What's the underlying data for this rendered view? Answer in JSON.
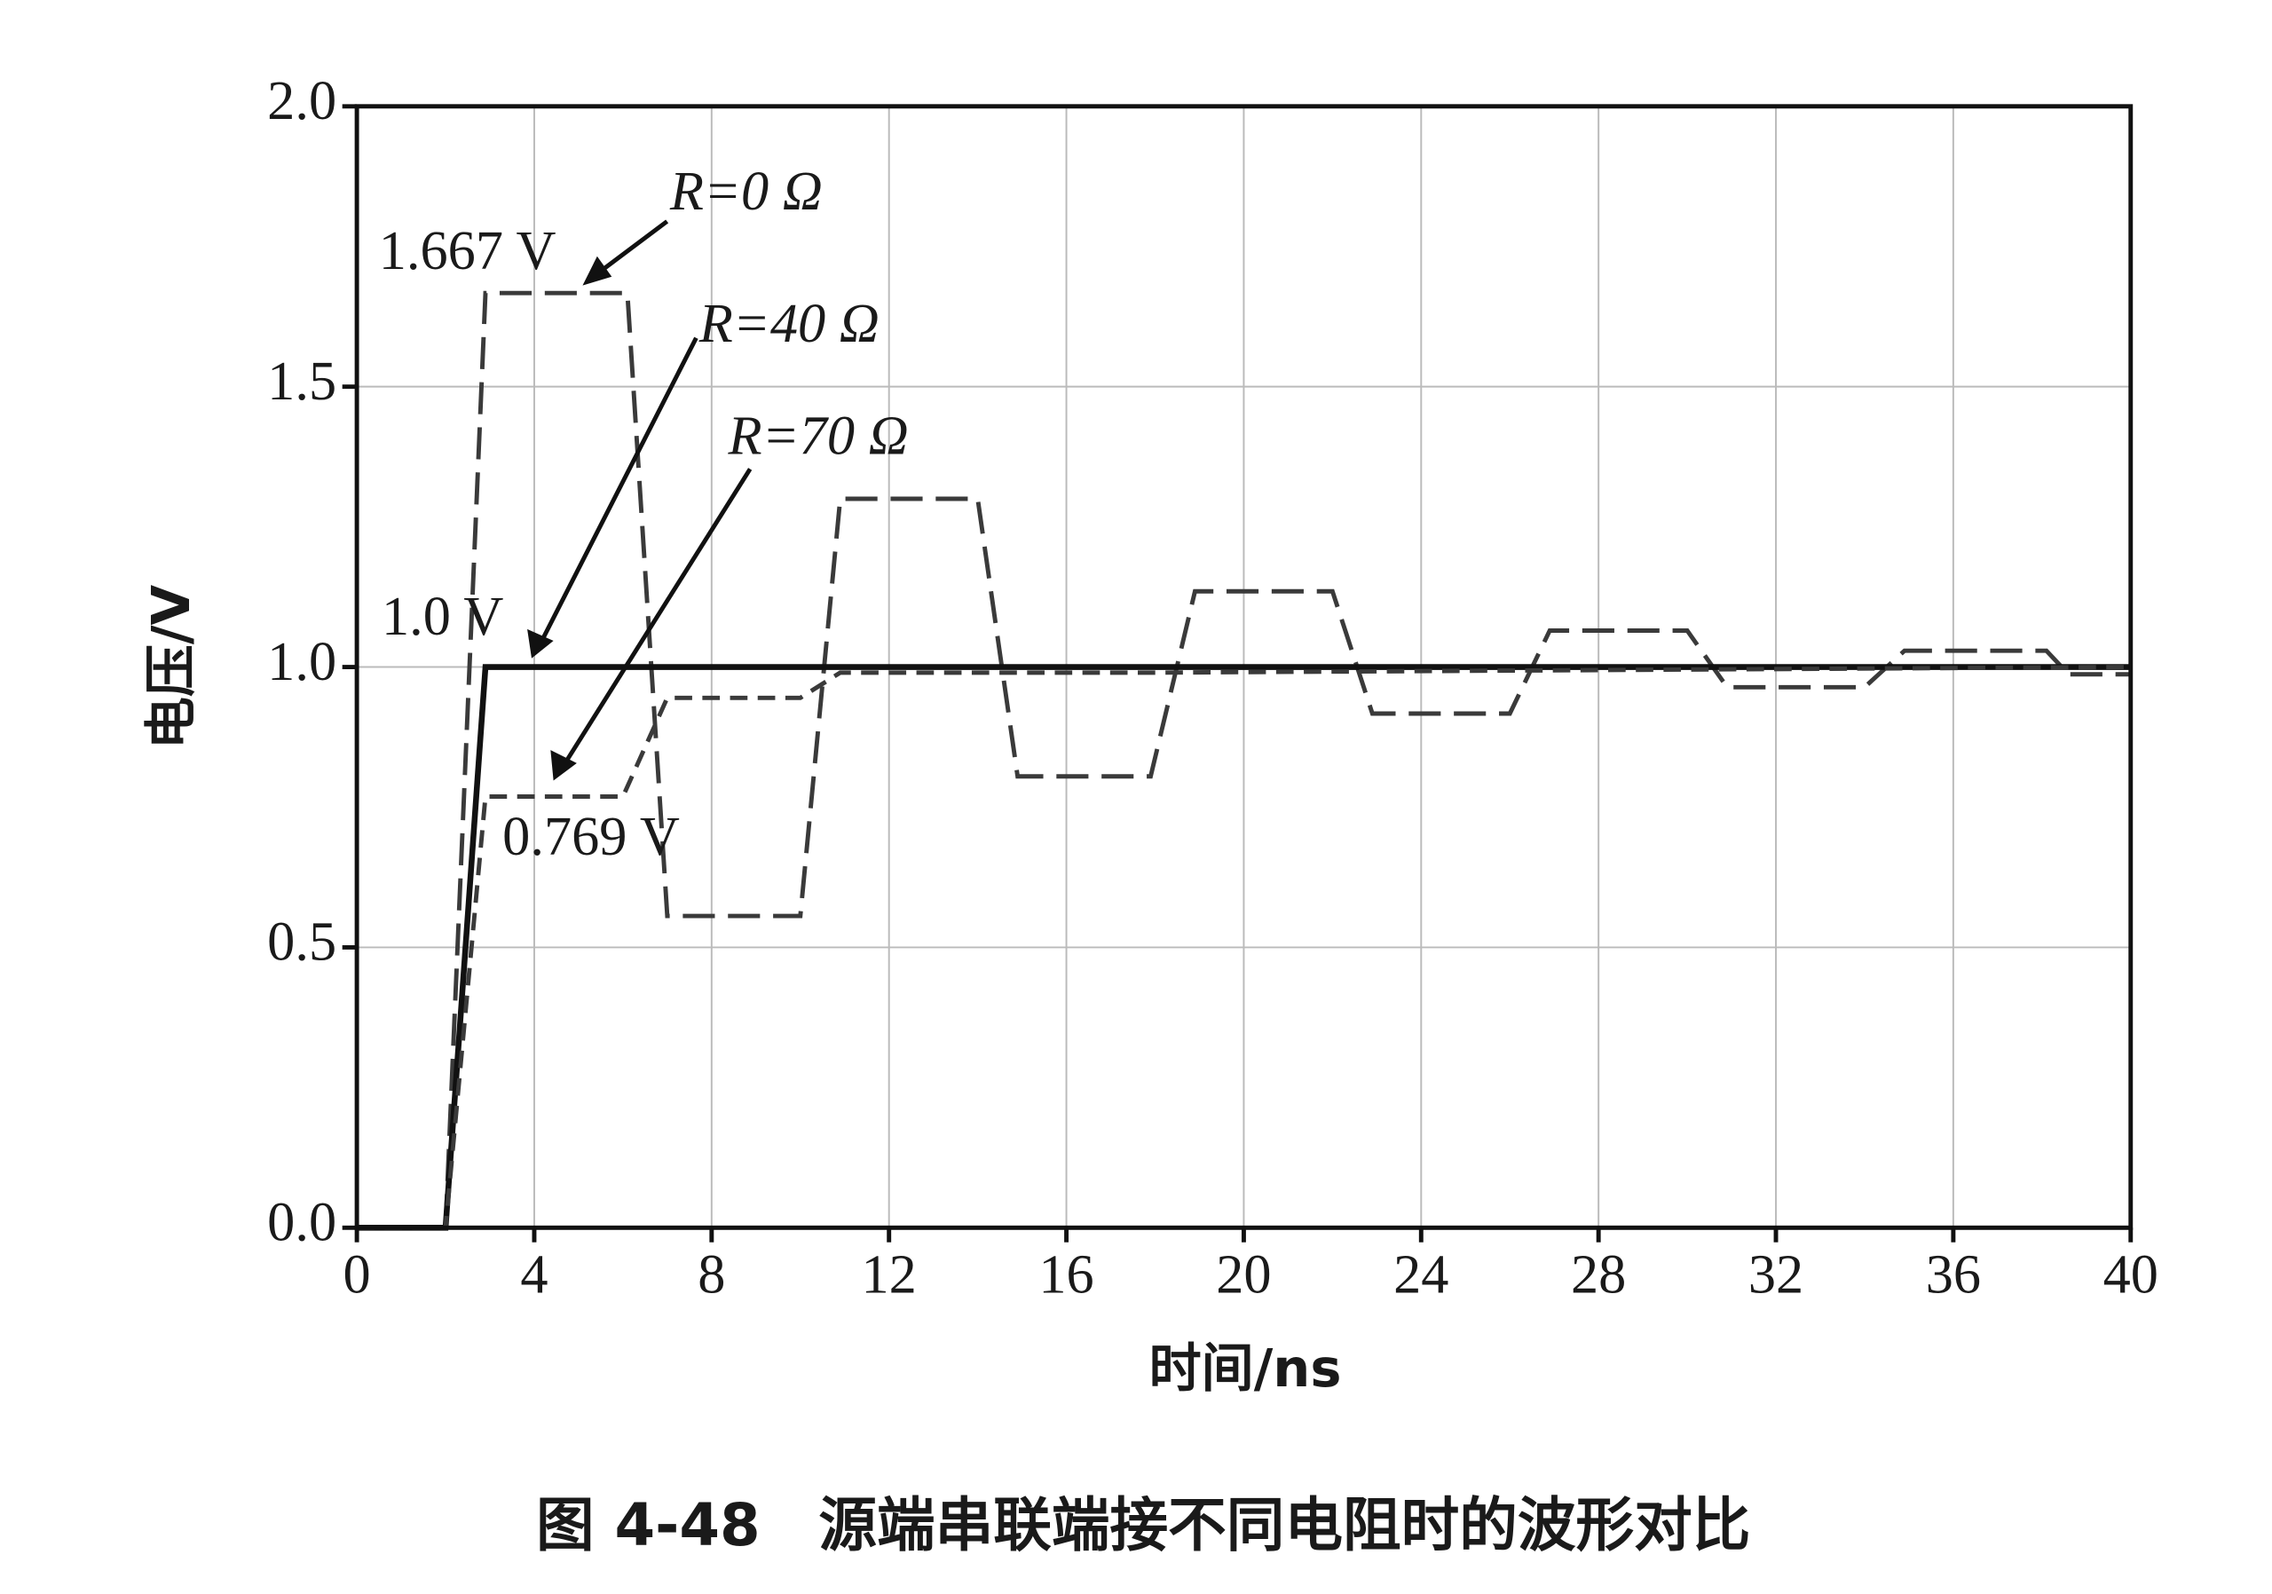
{
  "chart_data": {
    "type": "line",
    "x_label": "时间/ns",
    "y_label": "电压/V",
    "caption": "图 4-48　源端串联端接不同电阻时的波形对比",
    "xlim": [
      0,
      40
    ],
    "xticks": [
      0,
      4,
      8,
      12,
      16,
      20,
      24,
      28,
      32,
      36,
      40
    ],
    "ylim": [
      0,
      2
    ],
    "yticks": [
      {
        "value": 0,
        "label": "0.0"
      },
      0.5,
      {
        "value": 1,
        "label": "1.0"
      },
      1.5,
      {
        "value": 2,
        "label": "2.0"
      }
    ],
    "grid": true,
    "series": [
      {
        "name": "R=0 Ω",
        "color": "#3a3a3a",
        "dash": "long",
        "x": [
          0,
          2,
          2.9,
          6.1,
          7,
          10,
          10.9,
          14,
          14.9,
          17.9,
          18.9,
          22,
          22.9,
          26,
          26.9,
          30,
          30.9,
          34,
          34.9,
          38.1,
          38.6,
          40
        ],
        "values": [
          0,
          0,
          1.667,
          1.667,
          0.556,
          0.556,
          1.3,
          1.3,
          0.805,
          0.805,
          1.135,
          1.135,
          0.917,
          0.917,
          1.065,
          1.065,
          0.964,
          0.964,
          1.029,
          1.029,
          0.987,
          0.987
        ]
      },
      {
        "name": "R=40 Ω",
        "color": "#111111",
        "dash": "solid",
        "x": [
          0,
          2,
          2.9,
          40
        ],
        "values": [
          0,
          0,
          1,
          1
        ]
      },
      {
        "name": "R=70 Ω",
        "color": "#3a3a3a",
        "dash": "short",
        "x": [
          0,
          2,
          2.9,
          6,
          7,
          10,
          10.9,
          18,
          40
        ],
        "values": [
          0,
          0,
          0.769,
          0.769,
          0.945,
          0.945,
          0.99,
          0.99,
          1
        ]
      }
    ],
    "annotations": [
      "1.667 V",
      "1.0 V",
      "0.769 V"
    ]
  }
}
